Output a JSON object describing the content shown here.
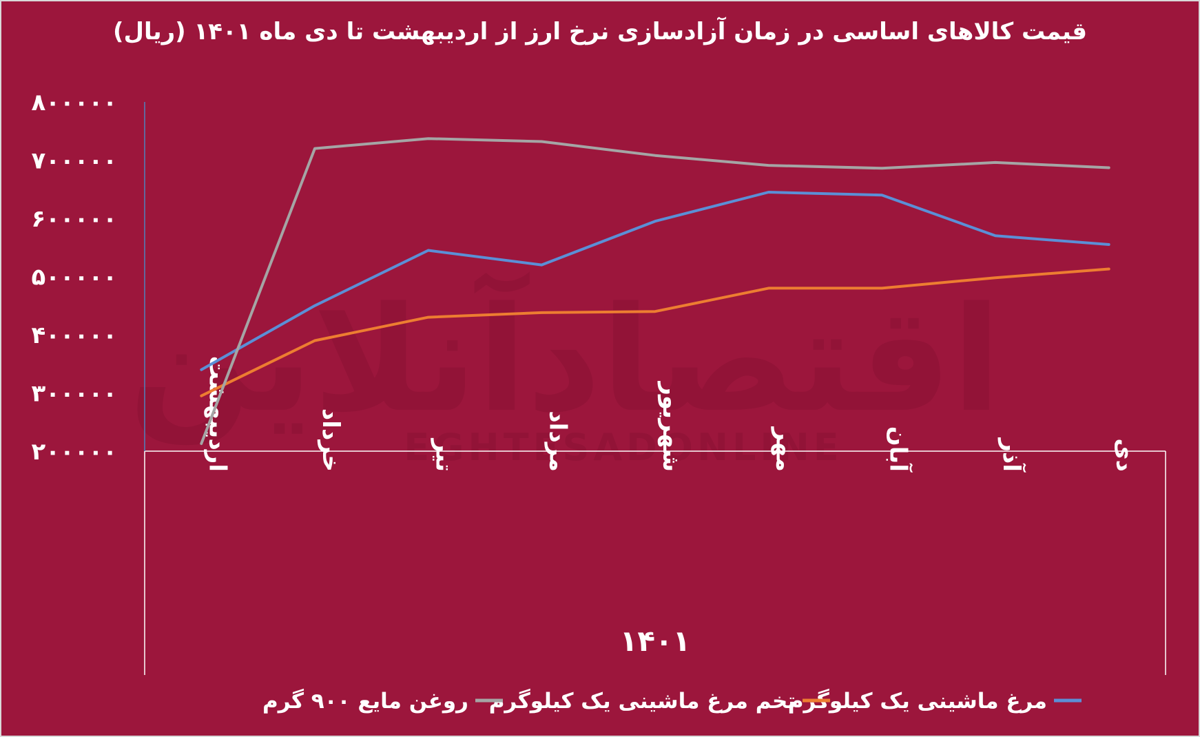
{
  "chart_data": {
    "type": "line",
    "title": "قیمت کالاهای اساسی در زمان آزادسازی نرخ ارز از اردیبهشت تا دی ماه ۱۴۰۱ (ریال)",
    "xlabel": "۱۴۰۱",
    "ylabel": "",
    "categories": [
      "اردیبهشت",
      "خرداد",
      "تیر",
      "مرداد",
      "شهریور",
      "مهر",
      "آبان",
      "آذر",
      "دی"
    ],
    "y_tick_labels": [
      "۸۰۰۰۰۰",
      "۷۰۰۰۰۰",
      "۶۰۰۰۰۰",
      "۵۰۰۰۰۰",
      "۴۰۰۰۰۰",
      "۳۰۰۰۰۰",
      "۲۰۰۰۰۰"
    ],
    "y_ticks": [
      800000,
      700000,
      600000,
      500000,
      400000,
      300000,
      200000
    ],
    "ylim": [
      200000,
      800000
    ],
    "grid": false,
    "legend_position": "bottom",
    "series": [
      {
        "name": "مرغ ماشینی یک کیلوگرم",
        "color": "#5b8fd6",
        "values": [
          340000,
          450000,
          545000,
          520000,
          595000,
          645000,
          640000,
          570000,
          555000
        ]
      },
      {
        "name": "تخم مرغ ماشینی یک کیلوگرم",
        "color": "#ed7d31",
        "values": [
          295000,
          390000,
          430000,
          438000,
          440000,
          480000,
          480000,
          498000,
          513000
        ]
      },
      {
        "name": "روغن مایع ۹۰۰ گرم",
        "color": "#a5a5a5",
        "values": [
          213000,
          720000,
          737000,
          732000,
          708000,
          691000,
          686000,
          696000,
          687000
        ]
      }
    ]
  },
  "watermark": {
    "text_fa": "اقتصادآنلاین",
    "text_en": "EGHTESADONLINE"
  }
}
